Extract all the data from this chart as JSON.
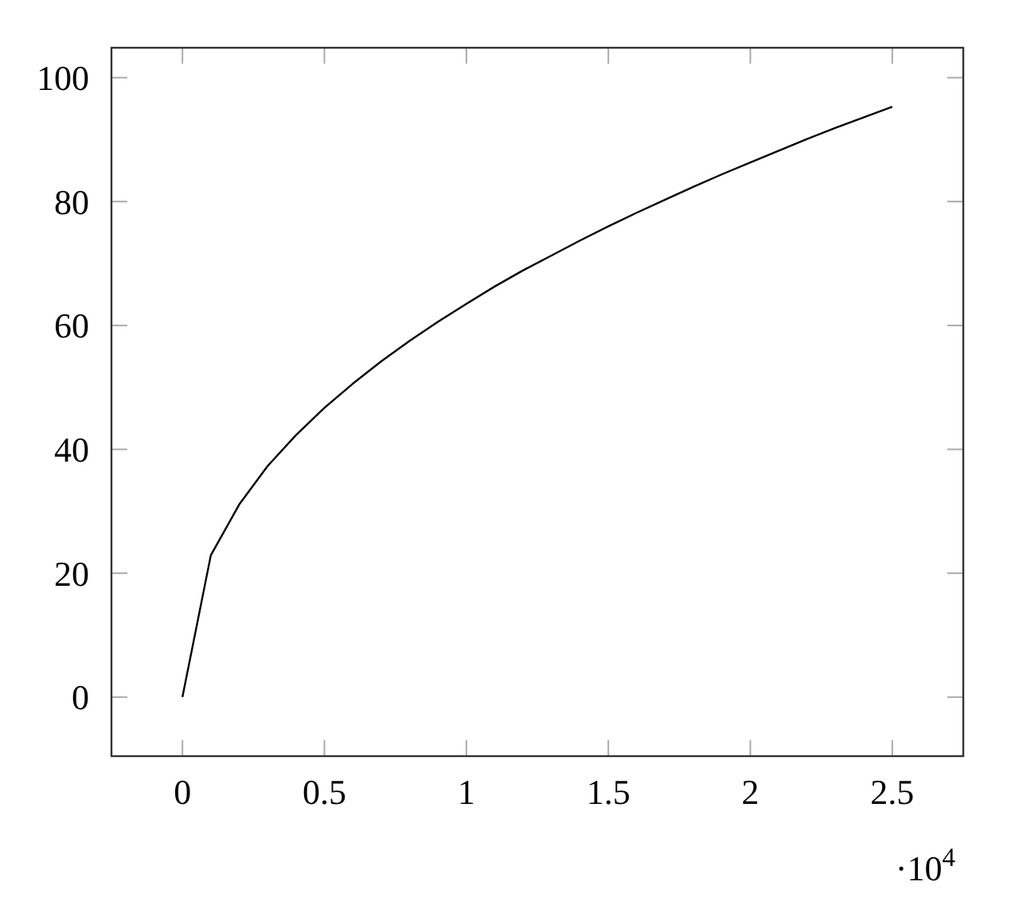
{
  "chart_data": {
    "type": "line",
    "x": [
      0,
      0.1,
      0.2,
      0.3,
      0.4,
      0.5,
      0.6,
      0.7,
      0.8,
      0.9,
      1.0,
      1.1,
      1.2,
      1.3,
      1.4,
      1.5,
      1.6,
      1.7,
      1.8,
      1.9,
      2.0,
      2.1,
      2.2,
      2.3,
      2.4,
      2.5
    ],
    "series": [
      {
        "color": "#000000",
        "values": [
          0,
          22.9,
          31.1,
          37.3,
          42.3,
          46.7,
          50.6,
          54.2,
          57.5,
          60.6,
          63.5,
          66.3,
          68.9,
          71.3,
          73.7,
          76.0,
          78.2,
          80.3,
          82.4,
          84.4,
          86.3,
          88.2,
          90.1,
          91.9,
          93.6,
          95.3
        ]
      }
    ],
    "xlim": [
      -0.25,
      2.75
    ],
    "xticks": [
      0,
      0.5,
      1,
      1.5,
      2,
      2.5
    ],
    "ylim": [
      -9.53,
      104.83
    ],
    "yticks": [
      0,
      20,
      40,
      60,
      80,
      100
    ],
    "annotations": [
      "·10$^{4}$"
    ],
    "marker": "none",
    "line_style": "solid",
    "grid": false
  }
}
